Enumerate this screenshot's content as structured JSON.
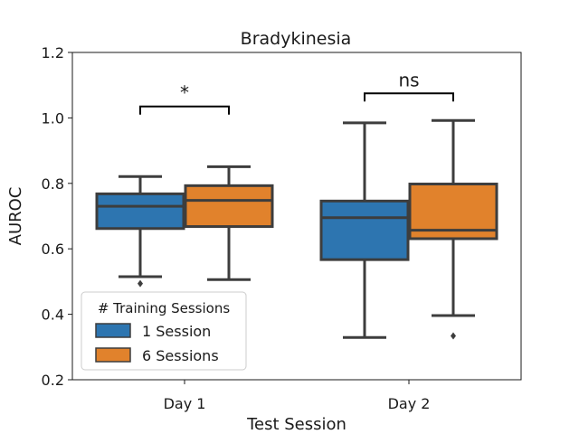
{
  "chart_data": {
    "type": "box",
    "title": "Bradykinesia",
    "xlabel": "Test Session",
    "ylabel": "AUROC",
    "ylim": [
      0.2,
      1.2
    ],
    "yticks": [
      "0.2",
      "0.4",
      "0.6",
      "0.8",
      "1.0",
      "1.2"
    ],
    "categories": [
      "Day 1",
      "Day 2"
    ],
    "legend": {
      "title": "# Training Sessions",
      "position": "lower-left"
    },
    "series": [
      {
        "name": "1 Session",
        "color": "#2d75b0",
        "boxes": [
          {
            "whisker_low": 0.515,
            "q1": 0.662,
            "median": 0.73,
            "q3": 0.768,
            "whisker_high": 0.821,
            "outliers": [
              0.494
            ]
          },
          {
            "whisker_low": 0.329,
            "q1": 0.567,
            "median": 0.695,
            "q3": 0.746,
            "whisker_high": 0.985,
            "outliers": []
          }
        ]
      },
      {
        "name": "6 Sessions",
        "color": "#e1822c",
        "boxes": [
          {
            "whisker_low": 0.506,
            "q1": 0.668,
            "median": 0.748,
            "q3": 0.793,
            "whisker_high": 0.851,
            "outliers": []
          },
          {
            "whisker_low": 0.396,
            "q1": 0.631,
            "median": 0.657,
            "q3": 0.798,
            "whisker_high": 0.992,
            "outliers": [
              0.334
            ]
          }
        ]
      }
    ],
    "annotations": [
      {
        "category": "Day 1",
        "text": "*",
        "y": 1.035
      },
      {
        "category": "Day 2",
        "text": "ns",
        "y": 1.075
      }
    ]
  }
}
